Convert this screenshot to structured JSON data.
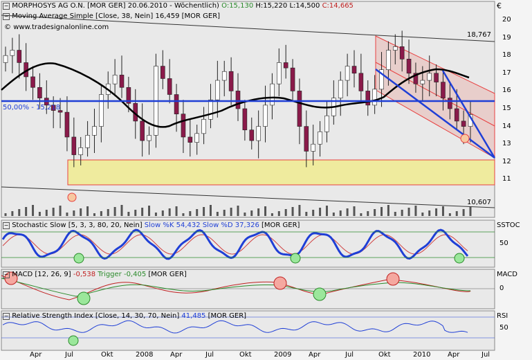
{
  "header": {
    "title_name": "MORPHOSYS AG O.N. [MOR GER]",
    "title_meta": "20.06.2010 - Wöchentlich)",
    "ohlc_o": "O:15,130",
    "ohlc_h": "H:15,220",
    "ohlc_l": "L:14,500",
    "ohlc_c": "C:14,665",
    "ma_label": "Moving Average Simple [Close, 38, Nein] 16,459 [MOR GER]",
    "website": "www.tradesignalonline.com",
    "currency": "€"
  },
  "price_axis": {
    "ticks": [
      "20",
      "19",
      "18",
      "17",
      "16",
      "15",
      "14",
      "13",
      "12",
      "11"
    ]
  },
  "annotations": {
    "fib_label": "50,00% - 15,218",
    "upper_value": "18,767",
    "lower_value": "10,607"
  },
  "stoch_panel": {
    "title_prefix": "Stochastic Slow [5, 3, 3, 80, 20, Nein]",
    "k_label": "Slow %K 54,432",
    "d_label": "Slow %D 37,326",
    "suffix": "[MOR GER]",
    "tag": "SSTOC",
    "tick": "50"
  },
  "macd_panel": {
    "title_prefix": "MACD [12, 26, 9]",
    "macd_value": "-0,538",
    "trigger_label": "Trigger -0,405",
    "suffix": "[MOR GER]",
    "tag": "MACD",
    "tick": "0"
  },
  "rsi_panel": {
    "title_prefix": "Relative Strength Index [Close, 14, 30, 70, Nein]",
    "rsi_value": "41,485",
    "suffix": "[MOR GER]",
    "tag": "RSI",
    "tick": "50"
  },
  "time_axis": {
    "labels": [
      "Apr",
      "Jul",
      "Okt",
      "2008",
      "Apr",
      "Jul",
      "Okt",
      "2009",
      "Apr",
      "Jul",
      "Okt",
      "2010",
      "Apr",
      "Jul"
    ]
  },
  "colors": {
    "up_candle": "#ffffff",
    "down_candle": "#8a1a4a",
    "ma": "#000000",
    "trend_blue": "#1f3fd6",
    "channel_red": "#e84040",
    "zone_yellow": "#f0ec9a",
    "stoch_k": "#1f3fd6",
    "stoch_d": "#d04040",
    "macd": "#c02020",
    "trigger": "#2a8a2a"
  },
  "chart_data": {
    "type": "candlestick",
    "series": [
      {
        "name": "MORPHOSYS AG O.N. [MOR GER]",
        "note": "weekly candles",
        "close_approx": [
          18.0,
          18.3,
          17.6,
          16.8,
          16.2,
          15.6,
          15.2,
          14.9,
          14.8,
          13.4,
          12.4,
          12.8,
          13.5,
          14.0,
          15.8,
          16.4,
          16.9,
          16.2,
          15.3,
          14.3,
          13.2,
          13.5,
          17.4,
          16.7,
          15.8,
          14.7,
          13.4,
          13.1,
          13.6,
          14.4,
          15.5,
          16.6,
          17.1,
          16.0,
          15.0,
          13.8,
          13.2,
          14.0,
          15.2,
          16.4,
          17.6,
          17.3,
          16.0,
          14.0,
          12.6,
          13.0,
          13.7,
          14.6,
          15.6,
          16.6,
          17.4,
          17.0,
          16.0,
          15.2,
          16.1,
          17.2,
          18.3,
          18.5,
          17.8,
          17.0,
          16.4,
          16.6,
          17.0,
          16.5,
          15.6,
          15.0,
          14.3,
          14.0,
          14.665
        ]
      },
      {
        "name": "Moving Average Simple [Close, 38, Nein]",
        "last": 16.459
      },
      {
        "name": "Slow %K",
        "last": 54.432
      },
      {
        "name": "Slow %D",
        "last": 37.326
      },
      {
        "name": "MACD",
        "last": -0.538
      },
      {
        "name": "Trigger",
        "last": -0.405
      },
      {
        "name": "RSI",
        "last": 41.485
      }
    ],
    "ylim": [
      11,
      20
    ],
    "levels": {
      "fib_50": 15.218,
      "upper": 18.767,
      "lower": 10.607
    }
  }
}
